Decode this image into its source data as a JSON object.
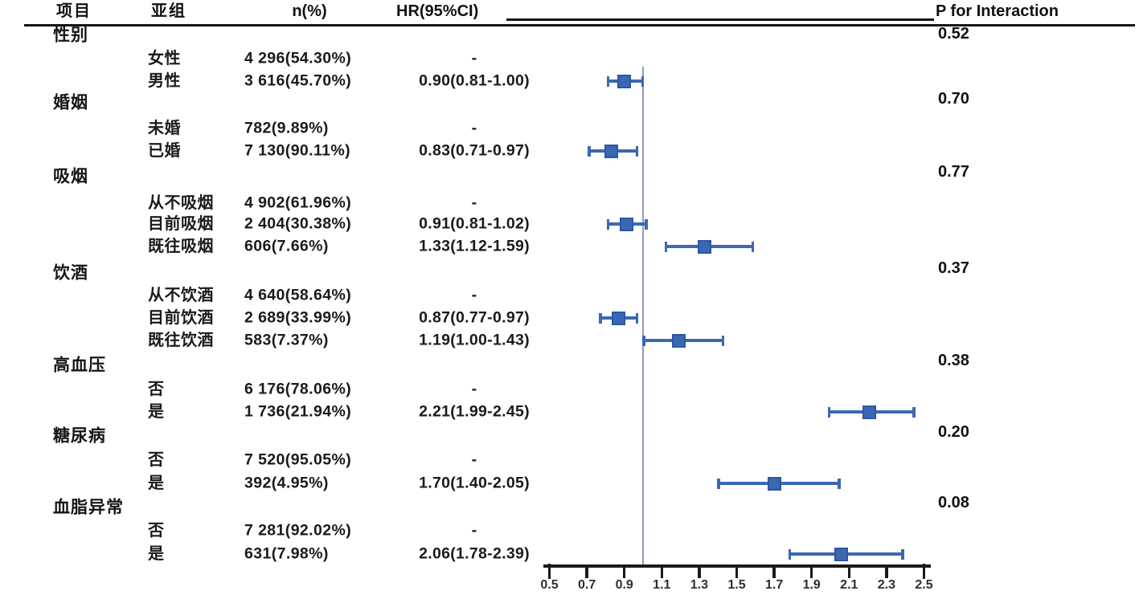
{
  "header": {
    "col_item": "项目",
    "col_subgroup": "亚组",
    "col_n": "n(%)",
    "col_hr": "HR(95%CI)",
    "col_p_interaction": "P for Interaction"
  },
  "colors": {
    "marker_fill": "#3b68b1",
    "marker_border": "#2a57a5",
    "whisker": "#3b68b1",
    "reference_line": "#9397c6",
    "axis": "#1a1a1a",
    "text": "#141414"
  },
  "groups": [
    {
      "label": "性别",
      "p_interaction": "0.52",
      "rows": [
        {
          "subgroup": "女性",
          "n": "4 296(54.30%)",
          "hr_text": "-"
        },
        {
          "subgroup": "男性",
          "n": "3 616(45.70%)",
          "hr_text": "0.90(0.81-1.00)",
          "hr": 0.9,
          "ci_low": 0.81,
          "ci_high": 1.0
        }
      ]
    },
    {
      "label": "婚姻",
      "p_interaction": "0.70",
      "rows": [
        {
          "subgroup": "未婚",
          "n": "782(9.89%)",
          "hr_text": "-"
        },
        {
          "subgroup": "已婚",
          "n": "7 130(90.11%)",
          "hr_text": "0.83(0.71-0.97)",
          "hr": 0.83,
          "ci_low": 0.71,
          "ci_high": 0.97
        }
      ]
    },
    {
      "label": "吸烟",
      "p_interaction": "0.77",
      "rows": [
        {
          "subgroup": "从不吸烟",
          "n": "4 902(61.96%)",
          "hr_text": "-"
        },
        {
          "subgroup": "目前吸烟",
          "n": "2 404(30.38%)",
          "hr_text": "0.91(0.81-1.02)",
          "hr": 0.91,
          "ci_low": 0.81,
          "ci_high": 1.02
        },
        {
          "subgroup": "既往吸烟",
          "n": "606(7.66%)",
          "hr_text": "1.33(1.12-1.59)",
          "hr": 1.33,
          "ci_low": 1.12,
          "ci_high": 1.59
        }
      ]
    },
    {
      "label": "饮酒",
      "p_interaction": "0.37",
      "rows": [
        {
          "subgroup": "从不饮酒",
          "n": "4 640(58.64%)",
          "hr_text": "-"
        },
        {
          "subgroup": "目前饮酒",
          "n": "2 689(33.99%)",
          "hr_text": "0.87(0.77-0.97)",
          "hr": 0.87,
          "ci_low": 0.77,
          "ci_high": 0.97
        },
        {
          "subgroup": "既往饮酒",
          "n": "583(7.37%)",
          "hr_text": "1.19(1.00-1.43)",
          "hr": 1.19,
          "ci_low": 1.0,
          "ci_high": 1.43
        }
      ]
    },
    {
      "label": "高血压",
      "p_interaction": "0.38",
      "rows": [
        {
          "subgroup": "否",
          "n": "6 176(78.06%)",
          "hr_text": "-"
        },
        {
          "subgroup": "是",
          "n": "1 736(21.94%)",
          "hr_text": "2.21(1.99-2.45)",
          "hr": 2.21,
          "ci_low": 1.99,
          "ci_high": 2.45
        }
      ]
    },
    {
      "label": "糖尿病",
      "p_interaction": "0.20",
      "rows": [
        {
          "subgroup": "否",
          "n": "7 520(95.05%)",
          "hr_text": "-"
        },
        {
          "subgroup": "是",
          "n": "392(4.95%)",
          "hr_text": "1.70(1.40-2.05)",
          "hr": 1.7,
          "ci_low": 1.4,
          "ci_high": 2.05
        }
      ]
    },
    {
      "label": "血脂异常",
      "p_interaction": "0.08",
      "rows": [
        {
          "subgroup": "否",
          "n": "7 281(92.02%)",
          "hr_text": "-"
        },
        {
          "subgroup": "是",
          "n": "631(7.98%)",
          "hr_text": "2.06(1.78-2.39)",
          "hr": 2.06,
          "ci_low": 1.78,
          "ci_high": 2.39
        }
      ]
    }
  ],
  "chart_data": {
    "type": "forest",
    "x_ticks": [
      0.5,
      0.7,
      0.9,
      1.1,
      1.3,
      1.5,
      1.7,
      1.9,
      2.1,
      2.3,
      2.5
    ],
    "x_tick_labels": [
      "0.5",
      "0.7",
      "0.9",
      "1.1",
      "1.3",
      "1.5",
      "1.7",
      "1.9",
      "2.1",
      "2.3",
      "2.5"
    ],
    "x_range": [
      0.5,
      2.5
    ],
    "reference_line": 1.0,
    "marker_shape": "square",
    "series": [
      {
        "group": "性别",
        "subgroup": "男性",
        "hr": 0.9,
        "ci_low": 0.81,
        "ci_high": 1.0
      },
      {
        "group": "婚姻",
        "subgroup": "已婚",
        "hr": 0.83,
        "ci_low": 0.71,
        "ci_high": 0.97
      },
      {
        "group": "吸烟",
        "subgroup": "目前吸烟",
        "hr": 0.91,
        "ci_low": 0.81,
        "ci_high": 1.02
      },
      {
        "group": "吸烟",
        "subgroup": "既往吸烟",
        "hr": 1.33,
        "ci_low": 1.12,
        "ci_high": 1.59
      },
      {
        "group": "饮酒",
        "subgroup": "目前饮酒",
        "hr": 0.87,
        "ci_low": 0.77,
        "ci_high": 0.97
      },
      {
        "group": "饮酒",
        "subgroup": "既往饮酒",
        "hr": 1.19,
        "ci_low": 1.0,
        "ci_high": 1.43
      },
      {
        "group": "高血压",
        "subgroup": "是",
        "hr": 2.21,
        "ci_low": 1.99,
        "ci_high": 2.45
      },
      {
        "group": "糖尿病",
        "subgroup": "是",
        "hr": 1.7,
        "ci_low": 1.4,
        "ci_high": 2.05
      },
      {
        "group": "血脂异常",
        "subgroup": "是",
        "hr": 2.06,
        "ci_low": 1.78,
        "ci_high": 2.39
      }
    ]
  }
}
